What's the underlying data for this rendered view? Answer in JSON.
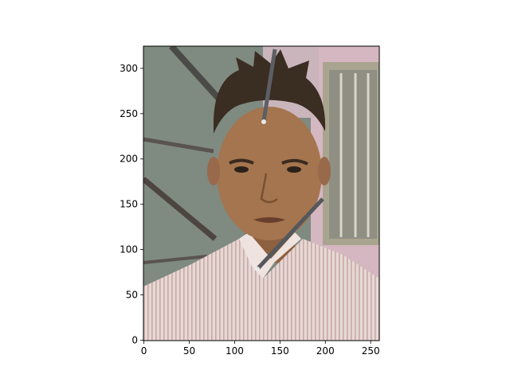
{
  "chart_data": {
    "type": "image",
    "title": "",
    "xlabel": "",
    "ylabel": "",
    "image_width": 260,
    "image_height": 325,
    "xlim": [
      -0.5,
      259.5
    ],
    "ylim": [
      324.5,
      -0.5
    ],
    "x_ticks": [
      0,
      50,
      100,
      150,
      200,
      250
    ],
    "y_ticks": [
      0,
      50,
      100,
      150,
      200,
      250,
      300
    ],
    "x_tick_labels": [
      "0",
      "50",
      "100",
      "150",
      "200",
      "250"
    ],
    "y_tick_labels": [
      "0",
      "50",
      "100",
      "150",
      "200",
      "250",
      "300"
    ],
    "bounding_box": {
      "x_min": 78,
      "y_min": 74,
      "x_max": 193,
      "y_max": 228,
      "color": "#ff0000"
    },
    "content_description": "photo of a young person with spiky hair in a striped shirt, with overlaid nail shapes",
    "colors": {
      "wall_gray": "#7f8a80",
      "wall_pink": "#d4b7c0",
      "skin": "#a4754e",
      "hair": "#3a2d22",
      "shirt": "#e3d4d0",
      "frame": "#000000"
    }
  }
}
